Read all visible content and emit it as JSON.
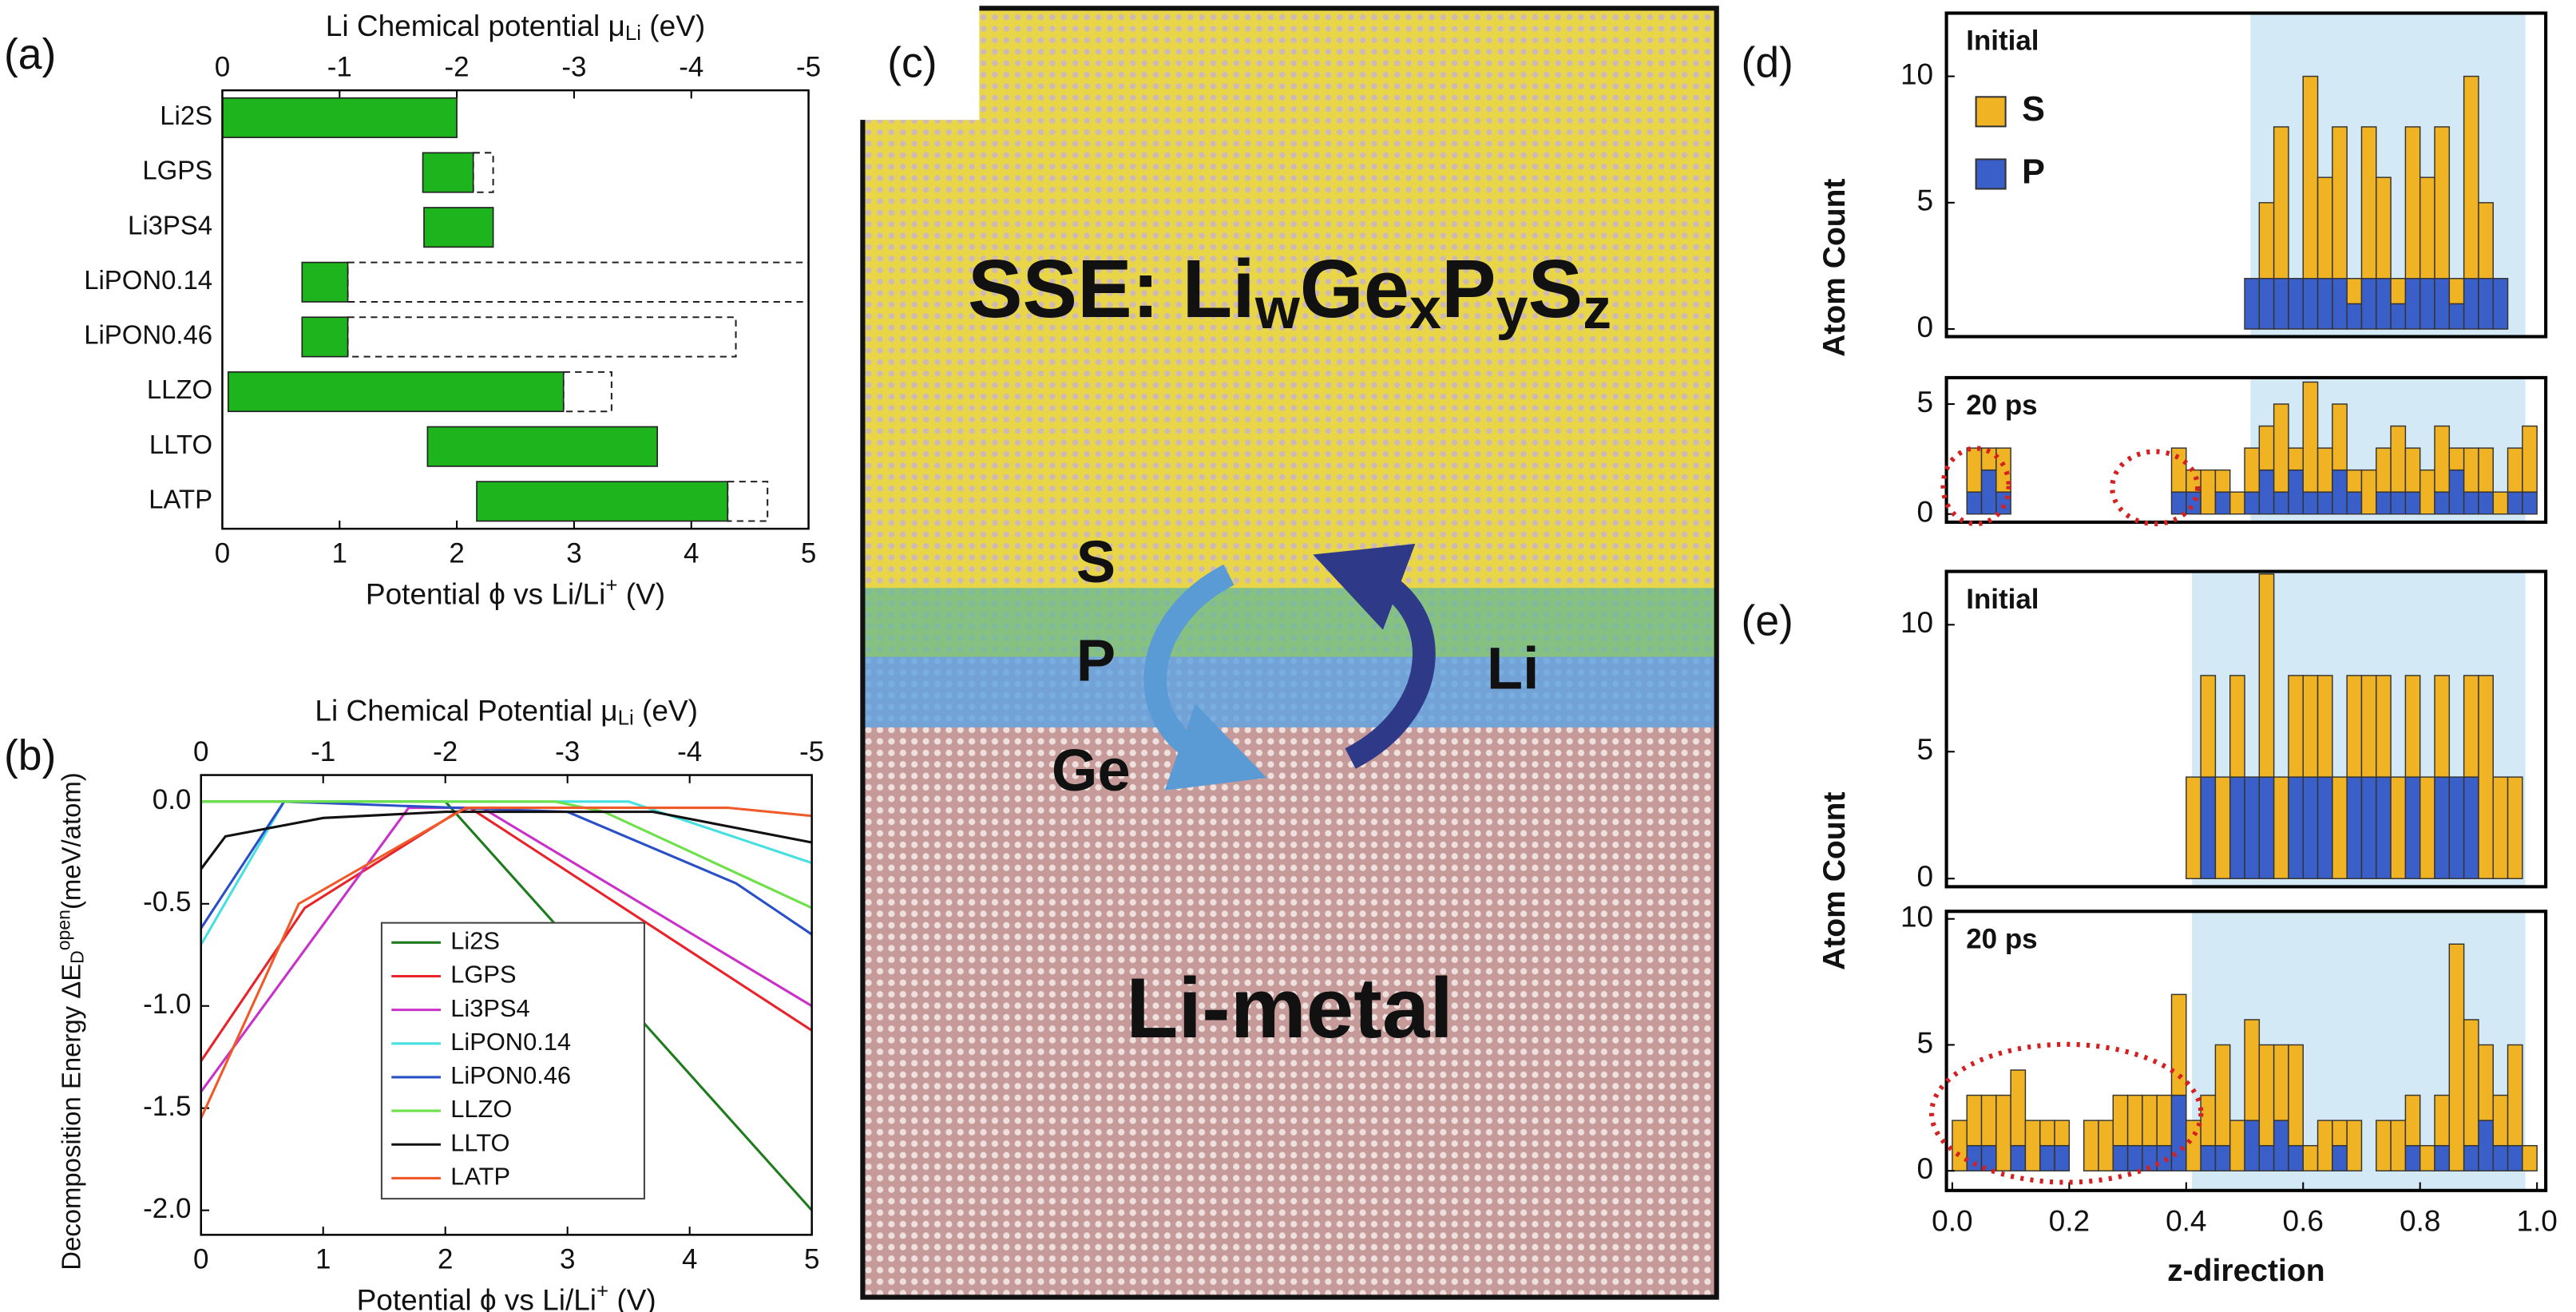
{
  "chart_data": [
    {
      "type": "floating_bar",
      "panel_label": "(a)",
      "categories": [
        "Li2S",
        "LGPS",
        "Li3PS4",
        "LiPON0.14",
        "LiPON0.46",
        "LLZO",
        "LLTO",
        "LATP"
      ],
      "lower": [
        0,
        1.71,
        1.72,
        0.68,
        0.68,
        0.05,
        1.75,
        2.17
      ],
      "upper": [
        2.0,
        2.14,
        2.31,
        1.07,
        1.07,
        2.91,
        3.71,
        4.31
      ],
      "open_upper": [
        null,
        2.31,
        null,
        5.0,
        4.38,
        3.32,
        null,
        4.65
      ],
      "color": "#1db41d",
      "xlim": [
        0,
        5
      ],
      "xticks": [
        0,
        1,
        2,
        3,
        4,
        5
      ],
      "x2lim": [
        0,
        -5
      ],
      "x2ticks": [
        0,
        -1,
        -2,
        -3,
        -4,
        -5
      ],
      "xlabel": [
        {
          "text": "Potential ϕ vs Li/Li"
        },
        {
          "text": "+",
          "shift": "sup"
        },
        {
          "text": " (V)"
        }
      ],
      "x2label": [
        {
          "text": "Li Chemical potential μ"
        },
        {
          "text": "Li",
          "shift": "sub"
        },
        {
          "text": " (eV)"
        }
      ]
    },
    {
      "type": "line",
      "panel_label": "(b)",
      "xlim": [
        0,
        5
      ],
      "xticks": [
        0,
        1,
        2,
        3,
        4,
        5
      ],
      "x2lim": [
        0,
        -5
      ],
      "x2ticks": [
        0,
        -1,
        -2,
        -3,
        -4,
        -5
      ],
      "ylim": [
        -2.12,
        0.13
      ],
      "yticks": [
        {
          "value": 0,
          "label": "0.0"
        },
        -0.5,
        {
          "value": -1,
          "label": "-1.0"
        },
        -1.5,
        {
          "value": -2,
          "label": "-2.0"
        }
      ],
      "xlabel": [
        {
          "text": "Potential ϕ vs Li/Li"
        },
        {
          "text": "+",
          "shift": "sup"
        },
        {
          "text": " (V)"
        }
      ],
      "x2label": [
        {
          "text": "Li Chemical Potential μ"
        },
        {
          "text": "Li",
          "shift": "sub"
        },
        {
          "text": " (eV)"
        }
      ],
      "ylabel": [
        {
          "text": "Decomposition Energy ΔE"
        },
        {
          "text": "D",
          "shift": "sub"
        },
        {
          "text": "open",
          "shift": "sup"
        },
        {
          "text": "(meV/atom)"
        }
      ],
      "legend": "lower left",
      "series": [
        {
          "name": "Li2S",
          "color": "#1e7b1e",
          "x": [
            0,
            2.0,
            5
          ],
          "values": [
            0,
            0,
            -2.0
          ]
        },
        {
          "name": "LGPS",
          "color": "#e8232a",
          "x": [
            0,
            0.85,
            2.1,
            2.2,
            5
          ],
          "values": [
            -1.27,
            -0.52,
            -0.05,
            -0.03,
            -1.12
          ]
        },
        {
          "name": "Li3PS4",
          "color": "#c832c8",
          "x": [
            0,
            1.7,
            2.3,
            5
          ],
          "values": [
            -1.42,
            -0.03,
            -0.03,
            -1.0
          ]
        },
        {
          "name": "LiPON0.14",
          "color": "#46e0e0",
          "x": [
            0,
            0.68,
            3.5,
            5
          ],
          "values": [
            -0.7,
            0,
            0,
            -0.3
          ]
        },
        {
          "name": "LiPON0.46",
          "color": "#2a50c8",
          "x": [
            0,
            0.68,
            3.0,
            4.38,
            5
          ],
          "values": [
            -0.62,
            0,
            -0.05,
            -0.4,
            -0.65
          ]
        },
        {
          "name": "LLZO",
          "color": "#6ee04a",
          "x": [
            0,
            2.9,
            3.3,
            5
          ],
          "values": [
            0,
            0,
            -0.05,
            -0.52
          ]
        },
        {
          "name": "LLTO",
          "color": "#111111",
          "x": [
            0,
            0.2,
            1,
            2,
            3.7,
            5
          ],
          "values": [
            -0.33,
            -0.17,
            -0.08,
            -0.05,
            -0.05,
            -0.2
          ]
        },
        {
          "name": "LATP",
          "color": "#f05a28",
          "x": [
            0,
            0.8,
            2.17,
            4.31,
            5
          ],
          "values": [
            -1.55,
            -0.5,
            -0.03,
            -0.03,
            -0.07
          ]
        }
      ]
    },
    {
      "type": "histogram",
      "panel_label": "(d)",
      "ylabel": "Atom Count",
      "xlim": [
        -0.01,
        1.015
      ],
      "shaded_region": [
        0.51,
        0.98
      ],
      "shade_color": "#d3e9f5",
      "bins": [
        0,
        0.025,
        0.05,
        0.075,
        0.1,
        0.125,
        0.15,
        0.175,
        0.2,
        0.225,
        0.25,
        0.275,
        0.3,
        0.325,
        0.35,
        0.375,
        0.4,
        0.425,
        0.45,
        0.475,
        0.5,
        0.525,
        0.55,
        0.575,
        0.6,
        0.625,
        0.65,
        0.675,
        0.7,
        0.725,
        0.75,
        0.775,
        0.8,
        0.825,
        0.85,
        0.875,
        0.9,
        0.925,
        0.95,
        0.975,
        1.0
      ],
      "series": [
        {
          "name": "S",
          "color": "#f0b323"
        },
        {
          "name": "P",
          "color": "#3a5fc8"
        }
      ],
      "legend": "upper left",
      "subplots": [
        {
          "label": "Initial",
          "ylim": [
            -0.3,
            12.5
          ],
          "yticks": [
            0,
            5,
            10
          ],
          "values": [
            [
              0,
              0,
              0,
              0,
              0,
              0,
              0,
              0,
              0,
              0,
              0,
              0,
              0,
              0,
              0,
              0,
              0,
              0,
              0,
              0,
              0,
              3,
              6,
              0,
              8,
              4,
              6,
              1,
              6,
              4,
              1,
              6,
              4,
              6,
              1,
              8,
              3,
              0,
              0,
              0
            ],
            [
              0,
              0,
              0,
              0,
              0,
              0,
              0,
              0,
              0,
              0,
              0,
              0,
              0,
              0,
              0,
              0,
              0,
              0,
              0,
              0,
              2,
              2,
              2,
              2,
              2,
              2,
              2,
              1,
              2,
              2,
              1,
              2,
              2,
              2,
              1,
              2,
              2,
              2,
              0,
              0
            ]
          ]
        },
        {
          "label": "20 ps",
          "ylim": [
            -0.37,
            6.2
          ],
          "yticks": [
            0,
            5
          ],
          "values": [
            [
              0,
              2,
              1,
              2,
              0,
              0,
              0,
              0,
              0,
              0,
              0,
              0,
              0,
              0,
              0,
              2,
              1,
              2,
              1,
              1,
              2,
              2,
              4,
              1,
              5,
              2,
              3,
              1,
              2,
              2,
              3,
              2,
              2,
              3,
              1,
              2,
              2,
              1,
              2,
              3
            ],
            [
              0,
              1,
              2,
              1,
              0,
              0,
              0,
              0,
              0,
              0,
              0,
              0,
              0,
              0,
              0,
              1,
              1,
              0,
              1,
              0,
              1,
              2,
              1,
              2,
              1,
              1,
              2,
              1,
              0,
              1,
              1,
              1,
              0,
              1,
              2,
              1,
              1,
              0,
              1,
              1
            ]
          ]
        }
      ]
    },
    {
      "type": "histogram",
      "panel_label": "(e)",
      "ylabel": "Atom Count",
      "xlabel": "z-direction",
      "xlim": [
        -0.01,
        1.015
      ],
      "shaded_region": [
        0.41,
        0.98
      ],
      "shade_color": "#d3e9f5",
      "xticks": [
        {
          "value": 0,
          "label": "0.0"
        },
        0.2,
        0.4,
        0.6,
        0.8,
        {
          "value": 1,
          "label": "1.0"
        }
      ],
      "bins": [
        0,
        0.025,
        0.05,
        0.075,
        0.1,
        0.125,
        0.15,
        0.175,
        0.2,
        0.225,
        0.25,
        0.275,
        0.3,
        0.325,
        0.35,
        0.375,
        0.4,
        0.425,
        0.45,
        0.475,
        0.5,
        0.525,
        0.55,
        0.575,
        0.6,
        0.625,
        0.65,
        0.675,
        0.7,
        0.725,
        0.75,
        0.775,
        0.8,
        0.825,
        0.85,
        0.875,
        0.9,
        0.925,
        0.95,
        0.975,
        1.0
      ],
      "series": [
        {
          "color": "#f0b323"
        },
        {
          "color": "#3a5fc8"
        }
      ],
      "subplots": [
        {
          "label": "Initial",
          "ylim": [
            -0.32,
            12.1
          ],
          "yticks": [
            0,
            5,
            10
          ],
          "values": [
            [
              0,
              0,
              0,
              0,
              0,
              0,
              0,
              0,
              0,
              0,
              0,
              0,
              0,
              0,
              0,
              0,
              4,
              4,
              4,
              4,
              0,
              8,
              4,
              4,
              4,
              4,
              4,
              4,
              4,
              4,
              4,
              4,
              4,
              4,
              0,
              4,
              8,
              4,
              4,
              0
            ],
            [
              0,
              0,
              0,
              0,
              0,
              0,
              0,
              0,
              0,
              0,
              0,
              0,
              0,
              0,
              0,
              0,
              0,
              4,
              0,
              4,
              4,
              4,
              0,
              4,
              4,
              4,
              0,
              4,
              4,
              4,
              0,
              4,
              0,
              4,
              4,
              4,
              0,
              0,
              0,
              0
            ]
          ]
        },
        {
          "label": "20 ps",
          "ylim": [
            -0.78,
            10.3
          ],
          "yticks": [
            0,
            5,
            10
          ],
          "values": [
            [
              2,
              2,
              2,
              3,
              3,
              2,
              1,
              1,
              0,
              2,
              2,
              2,
              2,
              2,
              2,
              4,
              2,
              2,
              4,
              2,
              4,
              4,
              3,
              4,
              1,
              2,
              1,
              2,
              0,
              2,
              2,
              2,
              1,
              2,
              9,
              5,
              3,
              2,
              4,
              1
            ],
            [
              0,
              1,
              1,
              0,
              1,
              0,
              1,
              1,
              0,
              0,
              0,
              1,
              1,
              1,
              1,
              3,
              0,
              1,
              1,
              0,
              2,
              1,
              2,
              1,
              0,
              0,
              1,
              0,
              0,
              0,
              0,
              1,
              0,
              1,
              0,
              1,
              2,
              1,
              1,
              0
            ]
          ]
        }
      ]
    }
  ],
  "diagram": {
    "panel_label": "(c)",
    "title": [
      {
        "text": "SSE: Li"
      },
      {
        "text": "w",
        "shift": "sub"
      },
      {
        "text": "Ge"
      },
      {
        "text": "x",
        "shift": "sub"
      },
      {
        "text": "P"
      },
      {
        "text": "y",
        "shift": "sub"
      },
      {
        "text": "S"
      },
      {
        "text": "z",
        "shift": "sub"
      }
    ],
    "left_labels": [
      "S",
      "P",
      "Ge"
    ],
    "right_label": "Li",
    "bottom_label": "Li-metal"
  }
}
